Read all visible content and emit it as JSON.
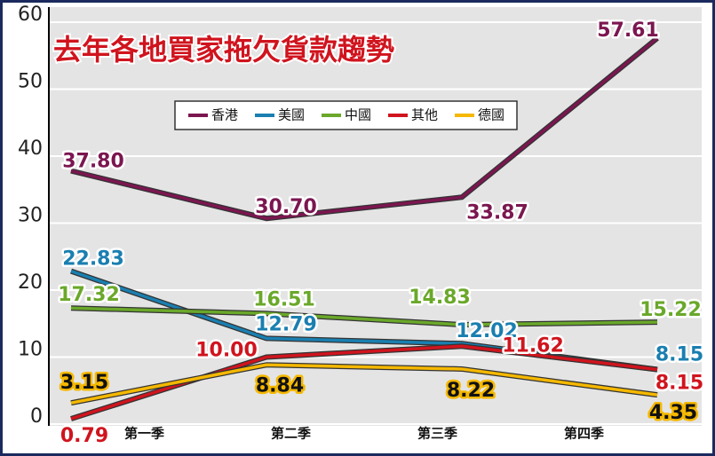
{
  "chart_data": {
    "type": "line",
    "title": "去年各地買家拖欠貨款趨勢",
    "categories": [
      "第一季",
      "第二季",
      "第三季",
      "第四季"
    ],
    "series": [
      {
        "name": "香港",
        "color": "#7b1650",
        "values": [
          37.8,
          30.7,
          33.87,
          57.61
        ],
        "value_labels": [
          "37.80",
          "30.70",
          "33.87",
          "57.61"
        ]
      },
      {
        "name": "美國",
        "color": "#1a7fb0",
        "values": [
          22.83,
          12.79,
          12.02,
          8.15
        ],
        "value_labels": [
          "22.83",
          "12.79",
          "12.02",
          "8.15"
        ]
      },
      {
        "name": "中國",
        "color": "#6aa82a",
        "values": [
          17.32,
          16.51,
          14.83,
          15.22
        ],
        "value_labels": [
          "17.32",
          "16.51",
          "14.83",
          "15.22"
        ]
      },
      {
        "name": "其他",
        "color": "#d0141e",
        "values": [
          0.79,
          10.0,
          11.62,
          8.15
        ],
        "value_labels": [
          "0.79",
          "10.00",
          "11.62",
          "8.15"
        ]
      },
      {
        "name": "德國",
        "color": "#f5b800",
        "values": [
          3.15,
          8.84,
          8.22,
          4.35
        ],
        "value_labels": [
          "3.15",
          "8.84",
          "8.22",
          "4.35"
        ]
      }
    ],
    "ylim": [
      0,
      60
    ],
    "yticks": [
      0,
      10,
      20,
      30,
      40,
      50,
      60
    ],
    "grid": true,
    "legend": "top"
  }
}
